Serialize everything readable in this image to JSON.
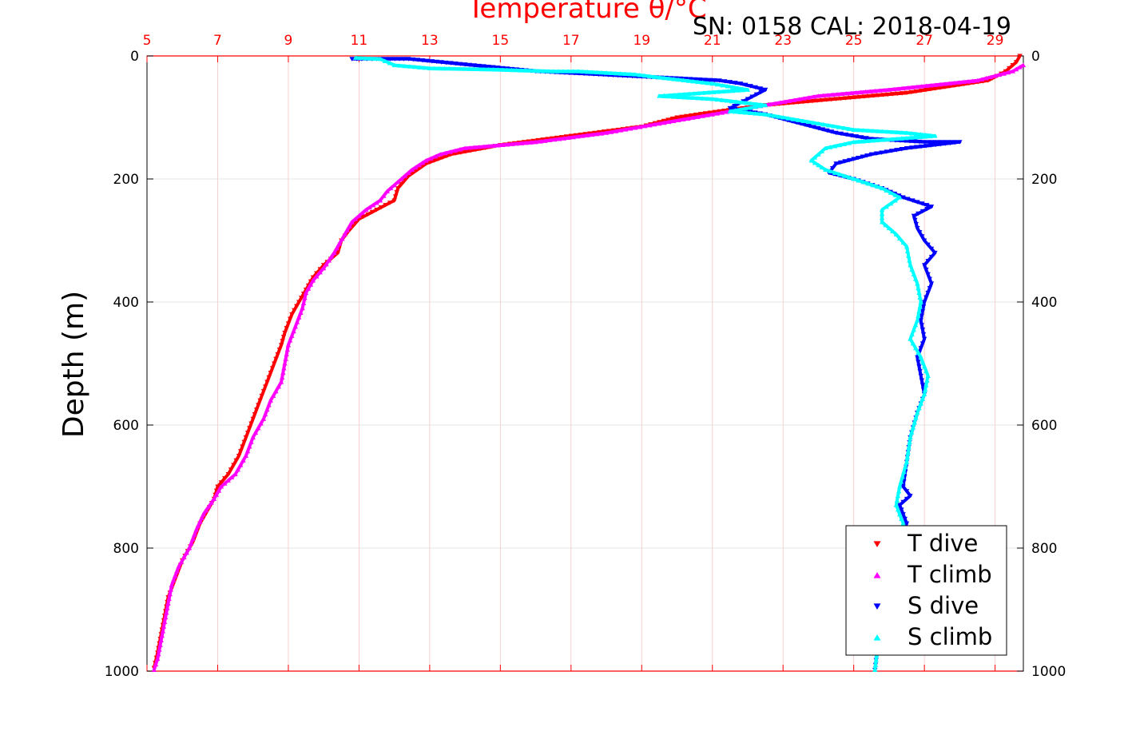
{
  "chart_data": {
    "type": "scatter",
    "title": "Temperature θ/°C",
    "subtitle": "SN: 0158  CAL: 2018-04-19",
    "ylabel": "Depth (m)",
    "x_top_ticks": [
      "5",
      "7",
      "9",
      "11",
      "13",
      "15",
      "17",
      "19",
      "21",
      "23",
      "25",
      "27",
      "29"
    ],
    "x_top_values": [
      5,
      7,
      9,
      11,
      13,
      15,
      17,
      19,
      21,
      23,
      25,
      27,
      29
    ],
    "xlim": [
      5,
      29.8
    ],
    "ylim": [
      0,
      1000
    ],
    "y_reversed": true,
    "y_ticks": [
      "0",
      "200",
      "400",
      "600",
      "800",
      "1000"
    ],
    "y_values": [
      0,
      200,
      400,
      600,
      800,
      1000
    ],
    "grid": true,
    "legend_position": "bottom-right",
    "series": [
      {
        "name": "T dive",
        "marker": "triangle-down",
        "color": "#ff0000",
        "points": [
          [
            29.7,
            0
          ],
          [
            29.6,
            10
          ],
          [
            29.3,
            25
          ],
          [
            28.8,
            40
          ],
          [
            26.5,
            60
          ],
          [
            24.5,
            70
          ],
          [
            22.5,
            80
          ],
          [
            21.2,
            90
          ],
          [
            20.0,
            100
          ],
          [
            19.0,
            115
          ],
          [
            17.0,
            130
          ],
          [
            15.0,
            145
          ],
          [
            13.6,
            160
          ],
          [
            12.9,
            175
          ],
          [
            12.4,
            195
          ],
          [
            12.1,
            215
          ],
          [
            12.0,
            235
          ],
          [
            11.5,
            250
          ],
          [
            11.0,
            265
          ],
          [
            10.7,
            285
          ],
          [
            10.5,
            300
          ],
          [
            10.4,
            320
          ],
          [
            10.0,
            340
          ],
          [
            9.7,
            360
          ],
          [
            9.5,
            380
          ],
          [
            9.3,
            400
          ],
          [
            9.1,
            420
          ],
          [
            8.9,
            450
          ],
          [
            8.8,
            470
          ],
          [
            8.6,
            500
          ],
          [
            8.4,
            530
          ],
          [
            8.2,
            560
          ],
          [
            8.0,
            590
          ],
          [
            7.8,
            620
          ],
          [
            7.6,
            650
          ],
          [
            7.3,
            680
          ],
          [
            7.0,
            700
          ],
          [
            6.9,
            720
          ],
          [
            6.7,
            740
          ],
          [
            6.5,
            760
          ],
          [
            6.3,
            790
          ],
          [
            6.0,
            820
          ],
          [
            5.8,
            850
          ],
          [
            5.6,
            880
          ],
          [
            5.5,
            910
          ],
          [
            5.4,
            940
          ],
          [
            5.3,
            970
          ],
          [
            5.2,
            995
          ]
        ]
      },
      {
        "name": "T climb",
        "marker": "triangle-up",
        "color": "#ff00ff",
        "points": [
          [
            29.8,
            15
          ],
          [
            29.5,
            25
          ],
          [
            28.5,
            40
          ],
          [
            26.0,
            55
          ],
          [
            24.0,
            65
          ],
          [
            22.5,
            80
          ],
          [
            21.0,
            95
          ],
          [
            19.5,
            110
          ],
          [
            18.0,
            125
          ],
          [
            16.0,
            140
          ],
          [
            14.0,
            150
          ],
          [
            13.3,
            160
          ],
          [
            12.9,
            170
          ],
          [
            12.5,
            185
          ],
          [
            12.2,
            200
          ],
          [
            11.8,
            220
          ],
          [
            11.6,
            235
          ],
          [
            11.2,
            250
          ],
          [
            10.8,
            270
          ],
          [
            10.6,
            290
          ],
          [
            10.3,
            320
          ],
          [
            10.0,
            345
          ],
          [
            9.7,
            365
          ],
          [
            9.5,
            385
          ],
          [
            9.4,
            410
          ],
          [
            9.2,
            440
          ],
          [
            9.0,
            470
          ],
          [
            8.9,
            500
          ],
          [
            8.8,
            530
          ],
          [
            8.5,
            560
          ],
          [
            8.3,
            590
          ],
          [
            8.0,
            620
          ],
          [
            7.8,
            650
          ],
          [
            7.5,
            680
          ],
          [
            7.1,
            700
          ],
          [
            6.9,
            720
          ],
          [
            6.6,
            745
          ],
          [
            6.4,
            770
          ],
          [
            6.2,
            800
          ],
          [
            5.9,
            830
          ],
          [
            5.7,
            860
          ],
          [
            5.6,
            890
          ],
          [
            5.5,
            920
          ],
          [
            5.4,
            950
          ],
          [
            5.3,
            980
          ],
          [
            5.2,
            998
          ]
        ]
      },
      {
        "name": "S dive",
        "marker": "triangle-down",
        "color": "#0000ff",
        "points": [
          [
            10.8,
            5
          ],
          [
            11.5,
            5
          ],
          [
            12.4,
            5
          ],
          [
            16.0,
            25
          ],
          [
            21.2,
            40
          ],
          [
            21.8,
            45
          ],
          [
            22.5,
            55
          ],
          [
            22.0,
            70
          ],
          [
            21.5,
            85
          ],
          [
            22.5,
            95
          ],
          [
            23.5,
            110
          ],
          [
            24.5,
            125
          ],
          [
            25.5,
            135
          ],
          [
            27.0,
            140
          ],
          [
            28.0,
            140
          ],
          [
            26.5,
            150
          ],
          [
            25.5,
            160
          ],
          [
            24.5,
            175
          ],
          [
            24.3,
            190
          ],
          [
            25.0,
            200
          ],
          [
            25.8,
            215
          ],
          [
            26.4,
            230
          ],
          [
            27.2,
            245
          ],
          [
            26.7,
            260
          ],
          [
            26.8,
            280
          ],
          [
            27.0,
            300
          ],
          [
            27.3,
            320
          ],
          [
            27.0,
            340
          ],
          [
            27.2,
            370
          ],
          [
            27.0,
            400
          ],
          [
            26.9,
            430
          ],
          [
            27.0,
            460
          ],
          [
            26.8,
            490
          ],
          [
            26.9,
            520
          ],
          [
            27.0,
            550
          ],
          [
            26.8,
            580
          ],
          [
            26.6,
            620
          ],
          [
            26.5,
            660
          ],
          [
            26.4,
            700
          ],
          [
            26.6,
            715
          ],
          [
            26.3,
            730
          ],
          [
            26.5,
            760
          ],
          [
            26.2,
            800
          ],
          [
            26.0,
            850
          ],
          [
            25.8,
            900
          ],
          [
            25.7,
            950
          ],
          [
            25.6,
            998
          ]
        ]
      },
      {
        "name": "S climb",
        "marker": "triangle-up",
        "color": "#00ffff",
        "points": [
          [
            10.9,
            3
          ],
          [
            11.6,
            5
          ],
          [
            12.0,
            15
          ],
          [
            13.0,
            20
          ],
          [
            14.8,
            22
          ],
          [
            16.5,
            25
          ],
          [
            17.2,
            25
          ],
          [
            18.8,
            30
          ],
          [
            19.5,
            35
          ],
          [
            21.0,
            45
          ],
          [
            22.0,
            55
          ],
          [
            19.5,
            65
          ],
          [
            21.0,
            70
          ],
          [
            22.5,
            80
          ],
          [
            21.5,
            90
          ],
          [
            22.5,
            95
          ],
          [
            23.0,
            100
          ],
          [
            24.0,
            110
          ],
          [
            25.0,
            120
          ],
          [
            26.5,
            125
          ],
          [
            27.3,
            130
          ],
          [
            25.0,
            140
          ],
          [
            24.2,
            150
          ],
          [
            23.8,
            170
          ],
          [
            24.2,
            185
          ],
          [
            25.0,
            200
          ],
          [
            25.8,
            215
          ],
          [
            26.3,
            230
          ],
          [
            25.8,
            250
          ],
          [
            25.8,
            270
          ],
          [
            26.2,
            290
          ],
          [
            26.5,
            310
          ],
          [
            26.6,
            340
          ],
          [
            26.8,
            370
          ],
          [
            26.9,
            400
          ],
          [
            26.8,
            430
          ],
          [
            26.6,
            460
          ],
          [
            26.9,
            490
          ],
          [
            27.1,
            520
          ],
          [
            27.0,
            550
          ],
          [
            26.8,
            580
          ],
          [
            26.6,
            620
          ],
          [
            26.5,
            660
          ],
          [
            26.3,
            700
          ],
          [
            26.2,
            730
          ],
          [
            26.4,
            760
          ],
          [
            26.2,
            800
          ],
          [
            26.0,
            850
          ],
          [
            25.8,
            900
          ],
          [
            25.7,
            950
          ],
          [
            25.6,
            998
          ]
        ]
      }
    ]
  }
}
